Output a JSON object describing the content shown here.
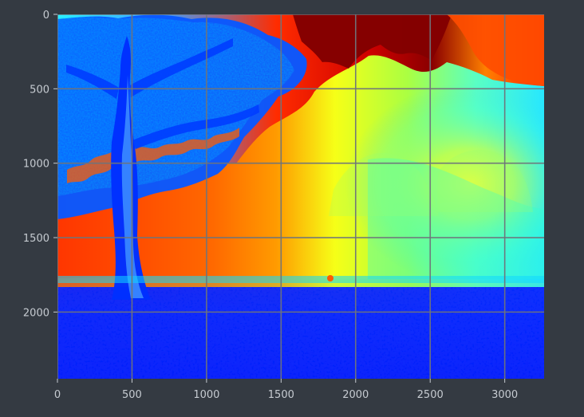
{
  "chart_data": {
    "type": "heatmap",
    "title": "",
    "xlabel": "",
    "ylabel": "",
    "colormap": "jet",
    "grid": true,
    "image_width": 3264,
    "image_height": 2448,
    "xlim": [
      0,
      3264
    ],
    "ylim": [
      2448,
      0
    ],
    "x_ticks": [
      0,
      500,
      1000,
      1500,
      2000,
      2500,
      3000
    ],
    "y_ticks": [
      0,
      500,
      1000,
      1500,
      2000
    ],
    "x_tick_labels": [
      "0",
      "500",
      "1000",
      "1500",
      "2000",
      "2500",
      "3000"
    ],
    "y_tick_labels": [
      "0",
      "500",
      "1000",
      "1500",
      "2000"
    ],
    "colors": {
      "background": "#343a42",
      "axis_text": "#c6cbd1",
      "grid": "#6f747b",
      "deep_blue": "#0000b4",
      "blue": "#0b4cff",
      "cyan": "#20e8ff",
      "yellow": "#ffff21",
      "orange": "#ff8c00",
      "red": "#ff1d00",
      "dark_red": "#800000"
    }
  }
}
